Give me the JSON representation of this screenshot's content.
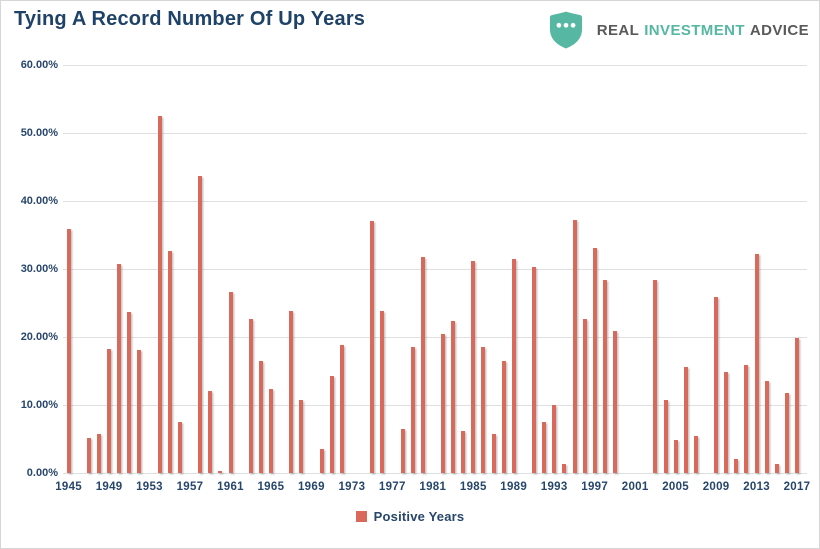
{
  "header": {
    "title": "Tying A Record Number Of Up Years",
    "logo": {
      "shield_icon": "three-dots-shield",
      "word_real": "REAL",
      "word_investment": "INVESTMENT",
      "word_advice": "ADVICE"
    }
  },
  "colors": {
    "bar": "#D9695B",
    "axis_text": "#27466B",
    "title_text": "#1F4268",
    "gridline": "#DFDFDF",
    "frame_border": "#D6D6D6",
    "logo_gray": "#58595B",
    "logo_teal": "#56B7A2",
    "background": "#FFFFFF"
  },
  "chart_data": {
    "type": "bar",
    "title": "Tying A Record Number Of Up Years",
    "xlabel": "",
    "ylabel": "",
    "ylim": [
      0,
      60
    ],
    "yticks": [
      0,
      10,
      20,
      30,
      40,
      50,
      60
    ],
    "ytick_labels": [
      "0.00%",
      "10.00%",
      "20.00%",
      "30.00%",
      "40.00%",
      "50.00%",
      "60.00%"
    ],
    "xtick_labels": [
      "1945",
      "1949",
      "1953",
      "1957",
      "1961",
      "1965",
      "1969",
      "1973",
      "1977",
      "1981",
      "1985",
      "1989",
      "1993",
      "1997",
      "2001",
      "2005",
      "2009",
      "2013",
      "2017"
    ],
    "grid": true,
    "legend": [
      "Positive Years"
    ],
    "legend_position": "bottom",
    "bar_color": "#D9695B",
    "series": [
      {
        "name": "Positive Years",
        "points": [
          {
            "year": 1945,
            "value": 35.82
          },
          {
            "year": 1946,
            "value": null
          },
          {
            "year": 1947,
            "value": 5.2
          },
          {
            "year": 1948,
            "value": 5.7
          },
          {
            "year": 1949,
            "value": 18.3
          },
          {
            "year": 1950,
            "value": 30.81
          },
          {
            "year": 1951,
            "value": 23.68
          },
          {
            "year": 1952,
            "value": 18.15
          },
          {
            "year": 1953,
            "value": null
          },
          {
            "year": 1954,
            "value": 52.56
          },
          {
            "year": 1955,
            "value": 32.6
          },
          {
            "year": 1956,
            "value": 7.44
          },
          {
            "year": 1957,
            "value": null
          },
          {
            "year": 1958,
            "value": 43.72
          },
          {
            "year": 1959,
            "value": 12.06
          },
          {
            "year": 1960,
            "value": 0.34
          },
          {
            "year": 1961,
            "value": 26.64
          },
          {
            "year": 1962,
            "value": null
          },
          {
            "year": 1963,
            "value": 22.61
          },
          {
            "year": 1964,
            "value": 16.42
          },
          {
            "year": 1965,
            "value": 12.4
          },
          {
            "year": 1966,
            "value": null
          },
          {
            "year": 1967,
            "value": 23.8
          },
          {
            "year": 1968,
            "value": 10.81
          },
          {
            "year": 1969,
            "value": null
          },
          {
            "year": 1970,
            "value": 3.56
          },
          {
            "year": 1971,
            "value": 14.22
          },
          {
            "year": 1972,
            "value": 18.76
          },
          {
            "year": 1973,
            "value": null
          },
          {
            "year": 1974,
            "value": null
          },
          {
            "year": 1975,
            "value": 37.0
          },
          {
            "year": 1976,
            "value": 23.83
          },
          {
            "year": 1977,
            "value": null
          },
          {
            "year": 1978,
            "value": 6.51
          },
          {
            "year": 1979,
            "value": 18.52
          },
          {
            "year": 1980,
            "value": 31.74
          },
          {
            "year": 1981,
            "value": null
          },
          {
            "year": 1982,
            "value": 20.42
          },
          {
            "year": 1983,
            "value": 22.34
          },
          {
            "year": 1984,
            "value": 6.15
          },
          {
            "year": 1985,
            "value": 31.24
          },
          {
            "year": 1986,
            "value": 18.49
          },
          {
            "year": 1987,
            "value": 5.81
          },
          {
            "year": 1988,
            "value": 16.54
          },
          {
            "year": 1989,
            "value": 31.48
          },
          {
            "year": 1990,
            "value": null
          },
          {
            "year": 1991,
            "value": 30.23
          },
          {
            "year": 1992,
            "value": 7.49
          },
          {
            "year": 1993,
            "value": 9.97
          },
          {
            "year": 1994,
            "value": 1.33
          },
          {
            "year": 1995,
            "value": 37.2
          },
          {
            "year": 1996,
            "value": 22.68
          },
          {
            "year": 1997,
            "value": 33.1
          },
          {
            "year": 1998,
            "value": 28.34
          },
          {
            "year": 1999,
            "value": 20.89
          },
          {
            "year": 2000,
            "value": null
          },
          {
            "year": 2001,
            "value": null
          },
          {
            "year": 2002,
            "value": null
          },
          {
            "year": 2003,
            "value": 28.36
          },
          {
            "year": 2004,
            "value": 10.74
          },
          {
            "year": 2005,
            "value": 4.83
          },
          {
            "year": 2006,
            "value": 15.61
          },
          {
            "year": 2007,
            "value": 5.48
          },
          {
            "year": 2008,
            "value": null
          },
          {
            "year": 2009,
            "value": 25.94
          },
          {
            "year": 2010,
            "value": 14.82
          },
          {
            "year": 2011,
            "value": 2.1
          },
          {
            "year": 2012,
            "value": 15.89
          },
          {
            "year": 2013,
            "value": 32.15
          },
          {
            "year": 2014,
            "value": 13.52
          },
          {
            "year": 2015,
            "value": 1.38
          },
          {
            "year": 2016,
            "value": 11.74
          },
          {
            "year": 2017,
            "value": 19.87
          }
        ]
      }
    ]
  }
}
